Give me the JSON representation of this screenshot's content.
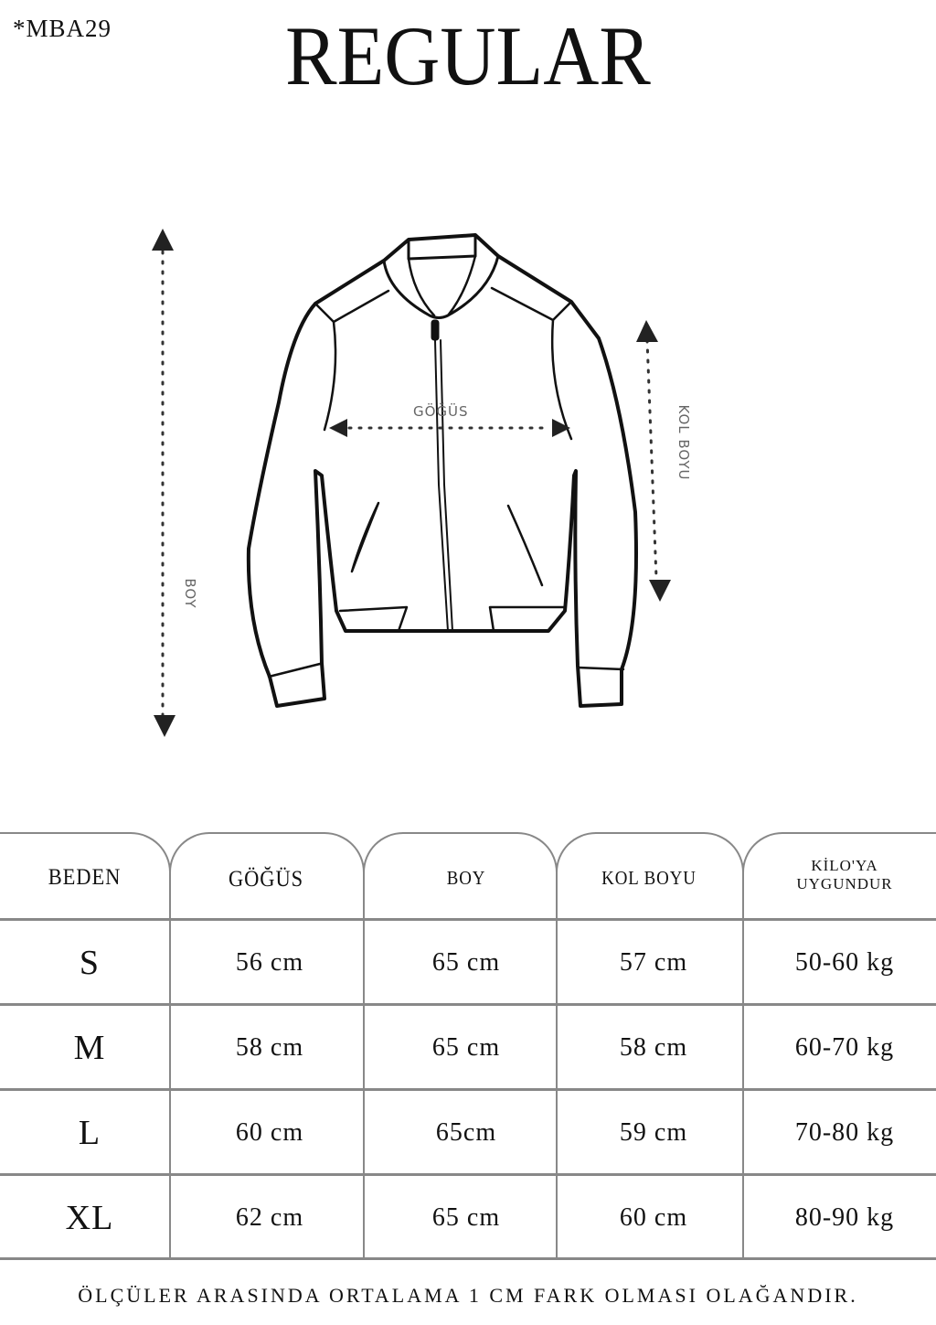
{
  "header": {
    "code": "*MBA29",
    "title": "REGULAR"
  },
  "diagram": {
    "chest_label": "GÖĞÜS",
    "sleeve_label": "KOL BOYU",
    "length_label": "BOY"
  },
  "table": {
    "headers": [
      "BEDEN",
      "GÖĞÜS",
      "BOY",
      "KOL BOYU",
      "KİLO'YA UYGUNDUR"
    ],
    "header_kilo_line1": "KİLO'YA",
    "header_kilo_line2": "UYGUNDUR",
    "rows": [
      [
        "S",
        "56 cm",
        "65 cm",
        "57  cm",
        "50-60 kg"
      ],
      [
        "M",
        "58 cm",
        "65 cm",
        "58 cm",
        "60-70 kg"
      ],
      [
        "L",
        "60 cm",
        "65cm",
        "59 cm",
        "70-80 kg"
      ],
      [
        "XL",
        "62 cm",
        "65 cm",
        "60 cm",
        "80-90 kg"
      ]
    ]
  },
  "footer": {
    "note": "ÖLÇÜLER ARASINDA ORTALAMA 1 CM FARK OLMASI OLAĞANDIR."
  }
}
